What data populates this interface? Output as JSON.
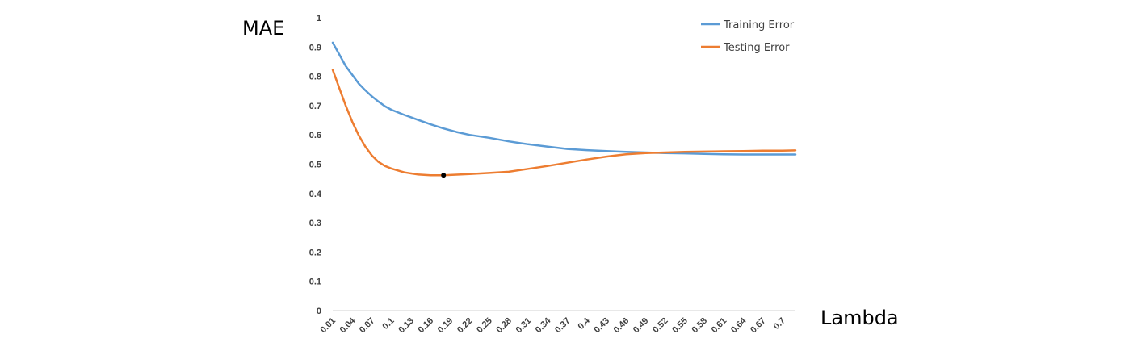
{
  "chart_data": {
    "type": "line",
    "title": "",
    "ylabel": "MAE",
    "xlabel": "Lambda",
    "ylim": [
      0,
      1
    ],
    "yticks": [
      "0",
      "0.1",
      "0.2",
      "0.3",
      "0.4",
      "0.5",
      "0.6",
      "0.7",
      "0.8",
      "0.9",
      "1"
    ],
    "xtick_labels": [
      "0.01",
      "0.04",
      "0.07",
      "0.1",
      "0.13",
      "0.16",
      "0.19",
      "0.22",
      "0.25",
      "0.28",
      "0.31",
      "0.34",
      "0.37",
      "0.4",
      "0.43",
      "0.46",
      "0.49",
      "0.52",
      "0.55",
      "0.58",
      "0.61",
      "0.64",
      "0.67",
      "0.7"
    ],
    "legend_position": "top-right",
    "grid": false,
    "series": [
      {
        "name": "Training Error",
        "color": "#5B9BD5",
        "x": [
          0.01,
          0.02,
          0.03,
          0.04,
          0.05,
          0.06,
          0.07,
          0.08,
          0.09,
          0.1,
          0.12,
          0.14,
          0.16,
          0.18,
          0.2,
          0.22,
          0.25,
          0.28,
          0.31,
          0.34,
          0.37,
          0.4,
          0.43,
          0.46,
          0.49,
          0.52,
          0.55,
          0.58,
          0.61,
          0.64,
          0.67,
          0.7,
          0.72
        ],
        "values": [
          0.915,
          0.875,
          0.835,
          0.805,
          0.775,
          0.752,
          0.732,
          0.714,
          0.698,
          0.686,
          0.668,
          0.652,
          0.636,
          0.622,
          0.61,
          0.6,
          0.59,
          0.578,
          0.568,
          0.56,
          0.552,
          0.548,
          0.545,
          0.542,
          0.54,
          0.538,
          0.537,
          0.535,
          0.534,
          0.533,
          0.533,
          0.533,
          0.533
        ]
      },
      {
        "name": "Testing Error",
        "color": "#ED7D31",
        "x": [
          0.01,
          0.02,
          0.03,
          0.04,
          0.05,
          0.06,
          0.07,
          0.08,
          0.09,
          0.1,
          0.12,
          0.14,
          0.16,
          0.18,
          0.19,
          0.22,
          0.25,
          0.28,
          0.31,
          0.34,
          0.37,
          0.4,
          0.43,
          0.46,
          0.49,
          0.52,
          0.55,
          0.58,
          0.61,
          0.64,
          0.67,
          0.7,
          0.72
        ],
        "values": [
          0.822,
          0.76,
          0.7,
          0.645,
          0.598,
          0.56,
          0.53,
          0.508,
          0.494,
          0.485,
          0.472,
          0.465,
          0.462,
          0.462,
          0.463,
          0.466,
          0.47,
          0.474,
          0.484,
          0.494,
          0.505,
          0.516,
          0.526,
          0.534,
          0.538,
          0.54,
          0.542,
          0.543,
          0.544,
          0.545,
          0.546,
          0.546,
          0.547
        ]
      }
    ],
    "marker": {
      "x": 0.18,
      "y": 0.462,
      "color": "#000000"
    }
  }
}
